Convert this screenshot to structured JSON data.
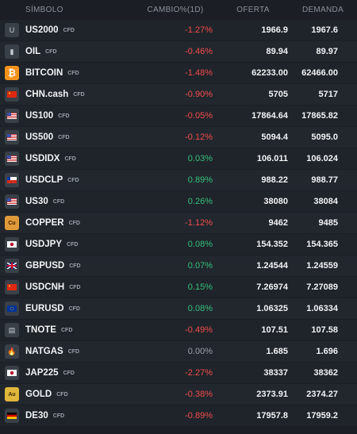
{
  "columns": {
    "symbol": "SÍMBOLO",
    "change": "CAMBIO%(1D)",
    "bid": "OFERTA",
    "ask": "DEMANDA"
  },
  "rows": [
    {
      "symbol": "US2000",
      "tag": "CFD",
      "icon": "us2000-icon",
      "glyph": "U",
      "change": "-1.27%",
      "dir": "neg",
      "bid": "1966.9",
      "ask": "1967.6"
    },
    {
      "symbol": "OIL",
      "tag": "CFD",
      "icon": "oil-icon",
      "glyph": "▮",
      "change": "-0.46%",
      "dir": "neg",
      "bid": "89.94",
      "ask": "89.97"
    },
    {
      "symbol": "BITCOIN",
      "tag": "CFD",
      "icon": "bitcoin-icon",
      "glyph": "₿",
      "change": "-1.48%",
      "dir": "neg",
      "bid": "62233.00",
      "ask": "62466.00"
    },
    {
      "symbol": "CHN.cash",
      "tag": "CFD",
      "icon": "china-flag-icon",
      "glyph": "",
      "change": "-0.90%",
      "dir": "neg",
      "bid": "5705",
      "ask": "5717"
    },
    {
      "symbol": "US100",
      "tag": "CFD",
      "icon": "us-flag-icon",
      "glyph": "",
      "change": "-0.05%",
      "dir": "neg",
      "bid": "17864.64",
      "ask": "17865.82"
    },
    {
      "symbol": "US500",
      "tag": "CFD",
      "icon": "us-flag-icon",
      "glyph": "",
      "change": "-0.12%",
      "dir": "neg",
      "bid": "5094.4",
      "ask": "5095.0"
    },
    {
      "symbol": "USDIDX",
      "tag": "CFD",
      "icon": "us-flag-icon",
      "glyph": "",
      "change": "0.03%",
      "dir": "pos",
      "bid": "106.011",
      "ask": "106.024"
    },
    {
      "symbol": "USDCLP",
      "tag": "CFD",
      "icon": "us-chile-flag-icon",
      "glyph": "",
      "change": "0.89%",
      "dir": "pos",
      "bid": "988.22",
      "ask": "988.77"
    },
    {
      "symbol": "US30",
      "tag": "CFD",
      "icon": "us-flag-icon",
      "glyph": "",
      "change": "0.26%",
      "dir": "pos",
      "bid": "38080",
      "ask": "38084"
    },
    {
      "symbol": "COPPER",
      "tag": "CFD",
      "icon": "copper-icon",
      "glyph": "Cu",
      "change": "-1.12%",
      "dir": "neg",
      "bid": "9462",
      "ask": "9485"
    },
    {
      "symbol": "USDJPY",
      "tag": "CFD",
      "icon": "us-japan-flag-icon",
      "glyph": "",
      "change": "0.08%",
      "dir": "pos",
      "bid": "154.352",
      "ask": "154.365"
    },
    {
      "symbol": "GBPUSD",
      "tag": "CFD",
      "icon": "uk-us-flag-icon",
      "glyph": "",
      "change": "0.07%",
      "dir": "pos",
      "bid": "1.24544",
      "ask": "1.24559"
    },
    {
      "symbol": "USDCNH",
      "tag": "CFD",
      "icon": "us-china-flag-icon",
      "glyph": "",
      "change": "0.15%",
      "dir": "pos",
      "bid": "7.26974",
      "ask": "7.27089"
    },
    {
      "symbol": "EURUSD",
      "tag": "CFD",
      "icon": "eu-us-flag-icon",
      "glyph": "",
      "change": "0.08%",
      "dir": "pos",
      "bid": "1.06325",
      "ask": "1.06334"
    },
    {
      "symbol": "TNOTE",
      "tag": "CFD",
      "icon": "tnote-icon",
      "glyph": "▤",
      "change": "-0.49%",
      "dir": "neg",
      "bid": "107.51",
      "ask": "107.58"
    },
    {
      "symbol": "NATGAS",
      "tag": "CFD",
      "icon": "gas-flame-icon",
      "glyph": "🔥",
      "change": "0.00%",
      "dir": "neu",
      "bid": "1.685",
      "ask": "1.696"
    },
    {
      "symbol": "JAP225",
      "tag": "CFD",
      "icon": "japan-flag-icon",
      "glyph": "",
      "change": "-2.27%",
      "dir": "neg",
      "bid": "38337",
      "ask": "38362"
    },
    {
      "symbol": "GOLD",
      "tag": "CFD",
      "icon": "gold-icon",
      "glyph": "Au",
      "change": "-0.38%",
      "dir": "neg",
      "bid": "2373.91",
      "ask": "2374.27"
    },
    {
      "symbol": "DE30",
      "tag": "CFD",
      "icon": "germany-flag-icon",
      "glyph": "",
      "change": "-0.89%",
      "dir": "neg",
      "bid": "17957.8",
      "ask": "17959.2"
    }
  ],
  "colors": {
    "negative": "#f24c4c",
    "positive": "#34c07a",
    "neutral": "#9aa1aa"
  }
}
